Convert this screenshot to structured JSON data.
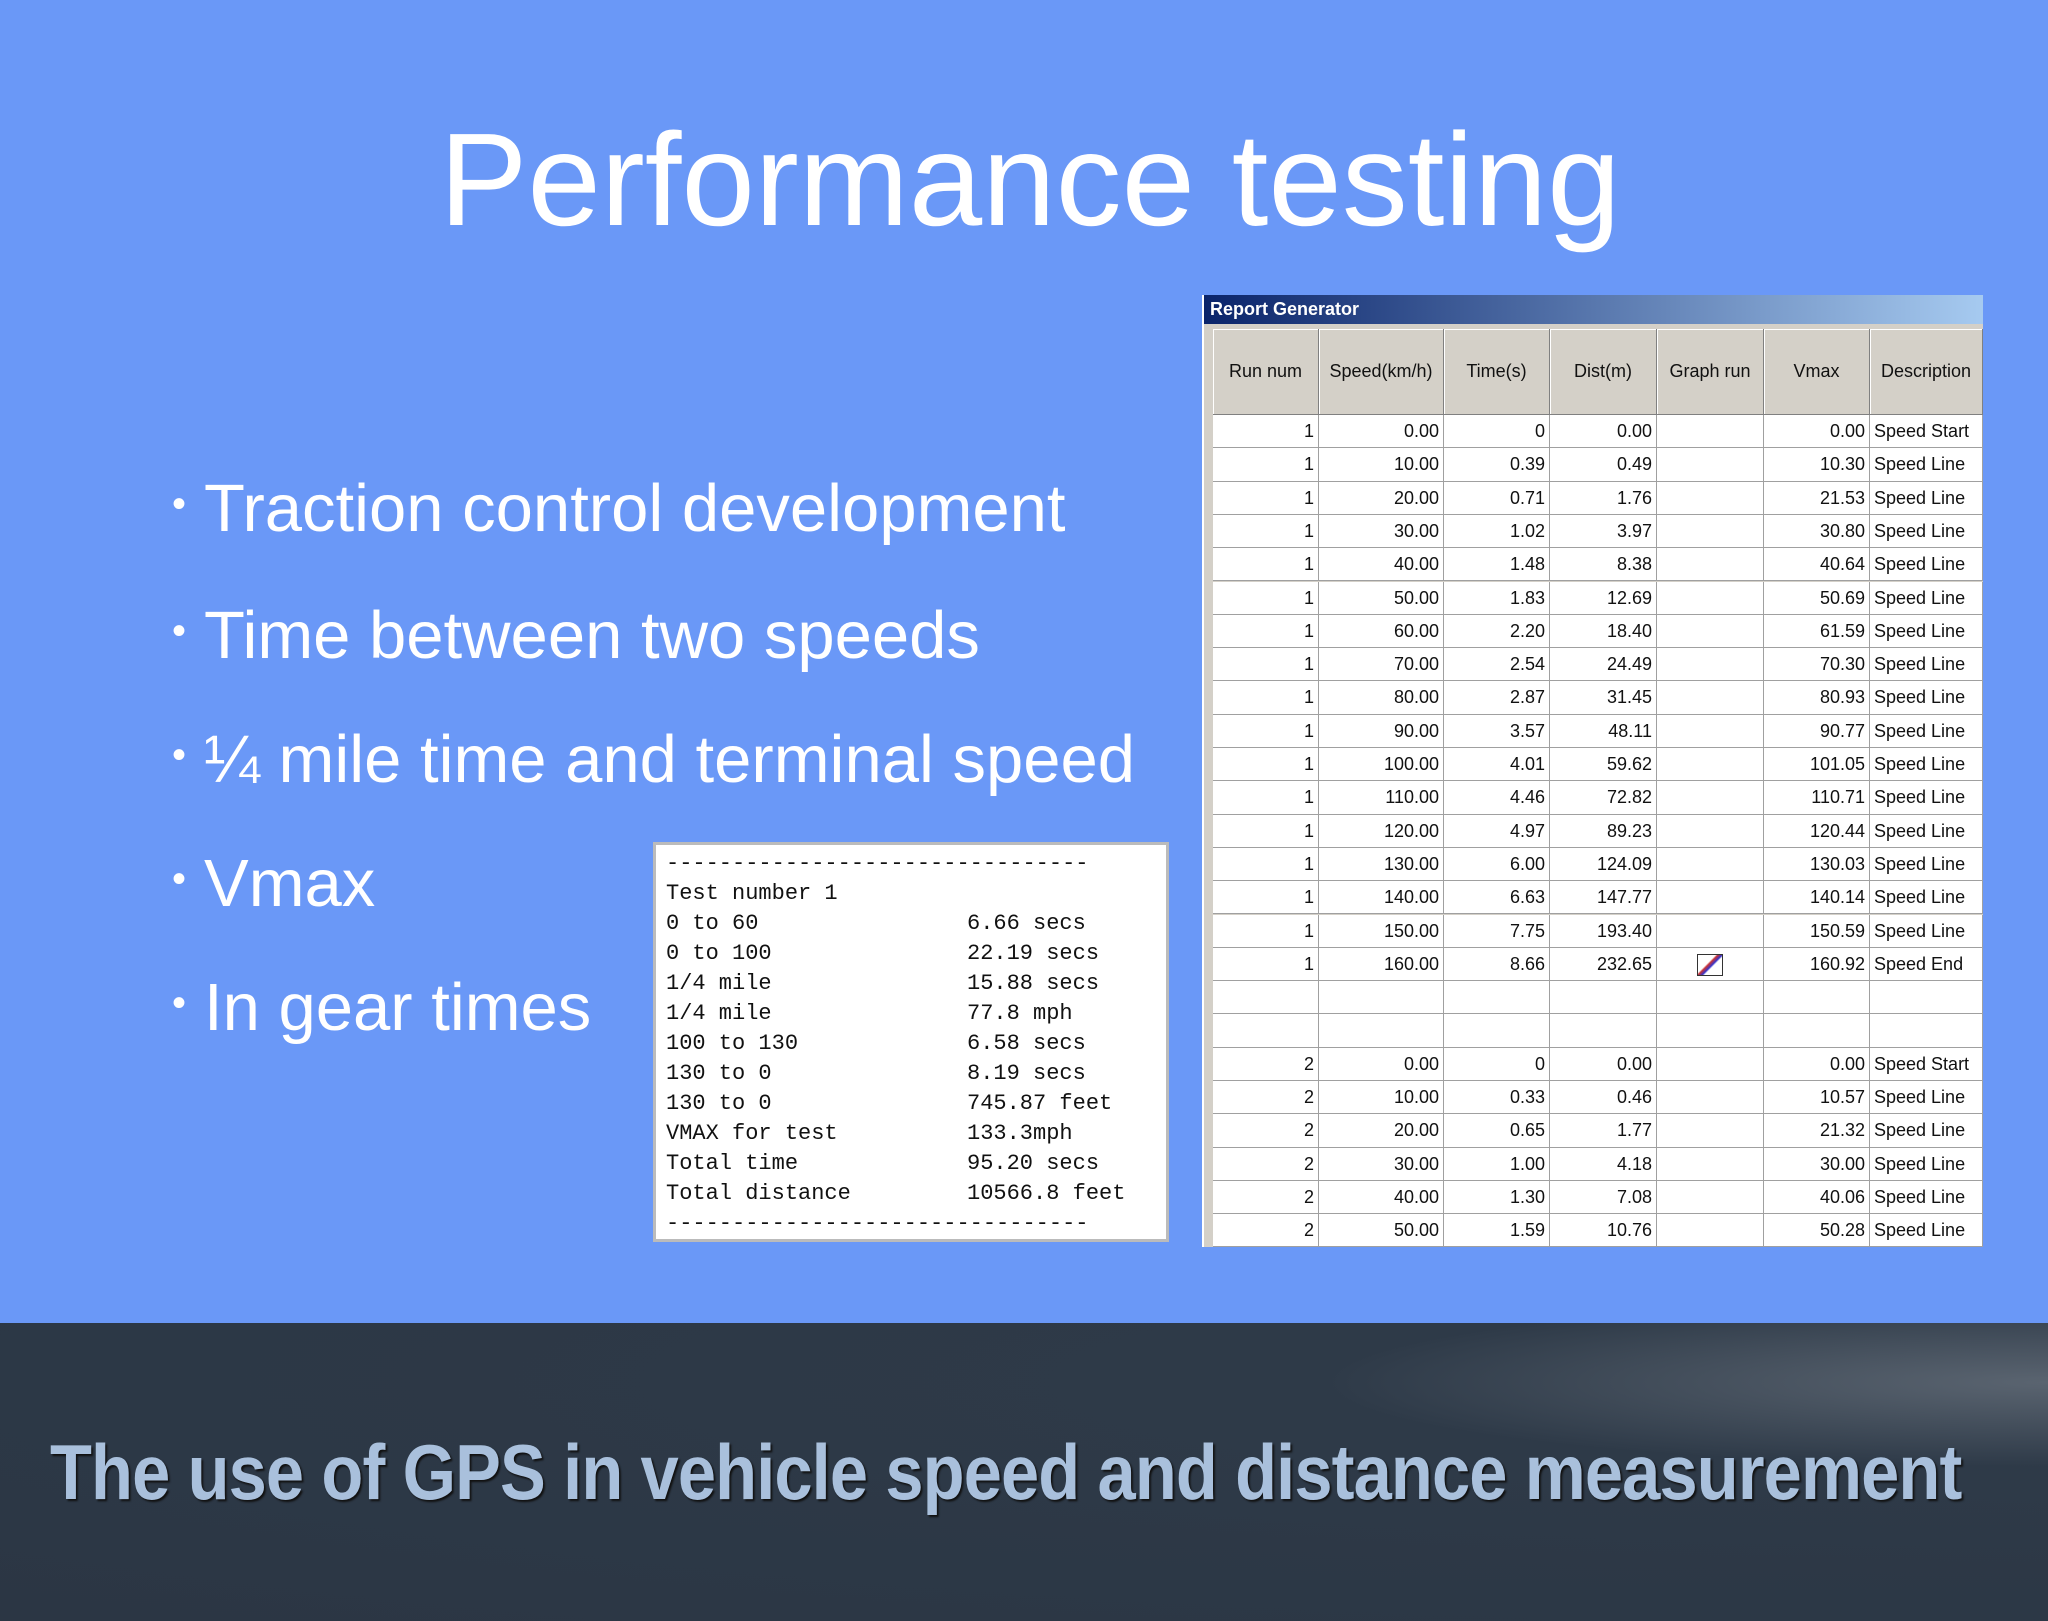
{
  "title": "Performance testing",
  "bullets": [
    "Traction control development",
    "Time between two speeds",
    "¼ mile time and terminal speed",
    "Vmax",
    "In gear times"
  ],
  "console": {
    "rule": "--------------------------------",
    "lines": [
      [
        "Test number 1"
      ],
      [
        "0 to 60",
        "6.66 secs"
      ],
      [
        "0 to 100",
        "22.19 secs"
      ],
      [
        "1/4 mile",
        "15.88 secs"
      ],
      [
        "1/4 mile",
        "77.8 mph"
      ],
      [
        "100 to 130",
        "6.58 secs"
      ],
      [
        "130 to 0",
        "8.19 secs"
      ],
      [
        "130 to 0",
        "745.87 feet"
      ],
      [
        "VMAX for test",
        "133.3mph"
      ],
      [
        "Total time",
        "95.20 secs"
      ],
      [
        "Total distance",
        "10566.8 feet"
      ]
    ]
  },
  "report": {
    "window_title": "Report Generator",
    "headers": [
      "Run num",
      "Speed(km/h)",
      "Time(s)",
      "Dist(m)",
      "Graph run",
      "Vmax",
      "Description"
    ],
    "groups": [
      [
        [
          "1",
          "0.00",
          "0",
          "0.00",
          "0.00",
          "Speed Start"
        ],
        [
          "1",
          "10.00",
          "0.39",
          "0.49",
          "10.30",
          "Speed Line"
        ],
        [
          "1",
          "20.00",
          "0.71",
          "1.76",
          "21.53",
          "Speed Line"
        ],
        [
          "1",
          "30.00",
          "1.02",
          "3.97",
          "30.80",
          "Speed Line"
        ],
        [
          "1",
          "40.00",
          "1.48",
          "8.38",
          "40.64",
          "Speed Line"
        ],
        [
          "1",
          "50.00",
          "1.83",
          "12.69",
          "50.69",
          "Speed Line"
        ],
        [
          "1",
          "60.00",
          "2.20",
          "18.40",
          "61.59",
          "Speed Line"
        ],
        [
          "1",
          "70.00",
          "2.54",
          "24.49",
          "70.30",
          "Speed Line"
        ],
        [
          "1",
          "80.00",
          "2.87",
          "31.45",
          "80.93",
          "Speed Line"
        ],
        [
          "1",
          "90.00",
          "3.57",
          "48.11",
          "90.77",
          "Speed Line"
        ],
        [
          "1",
          "100.00",
          "4.01",
          "59.62",
          "101.05",
          "Speed Line"
        ],
        [
          "1",
          "110.00",
          "4.46",
          "72.82",
          "110.71",
          "Speed Line"
        ],
        [
          "1",
          "120.00",
          "4.97",
          "89.23",
          "120.44",
          "Speed Line"
        ],
        [
          "1",
          "130.00",
          "6.00",
          "124.09",
          "130.03",
          "Speed Line"
        ],
        [
          "1",
          "140.00",
          "6.63",
          "147.77",
          "140.14",
          "Speed Line"
        ],
        [
          "1",
          "150.00",
          "7.75",
          "193.40",
          "150.59",
          "Speed Line"
        ],
        [
          "1",
          "160.00",
          "8.66",
          "232.65",
          "160.92",
          "Speed End"
        ]
      ],
      [
        [
          "2",
          "0.00",
          "0",
          "0.00",
          "0.00",
          "Speed Start"
        ],
        [
          "2",
          "10.00",
          "0.33",
          "0.46",
          "10.57",
          "Speed Line"
        ],
        [
          "2",
          "20.00",
          "0.65",
          "1.77",
          "21.32",
          "Speed Line"
        ],
        [
          "2",
          "30.00",
          "1.00",
          "4.18",
          "30.00",
          "Speed Line"
        ],
        [
          "2",
          "40.00",
          "1.30",
          "7.08",
          "40.06",
          "Speed Line"
        ],
        [
          "2",
          "50.00",
          "1.59",
          "10.76",
          "50.28",
          "Speed Line"
        ]
      ]
    ]
  },
  "footer": "The use of GPS in vehicle speed and distance measurement"
}
